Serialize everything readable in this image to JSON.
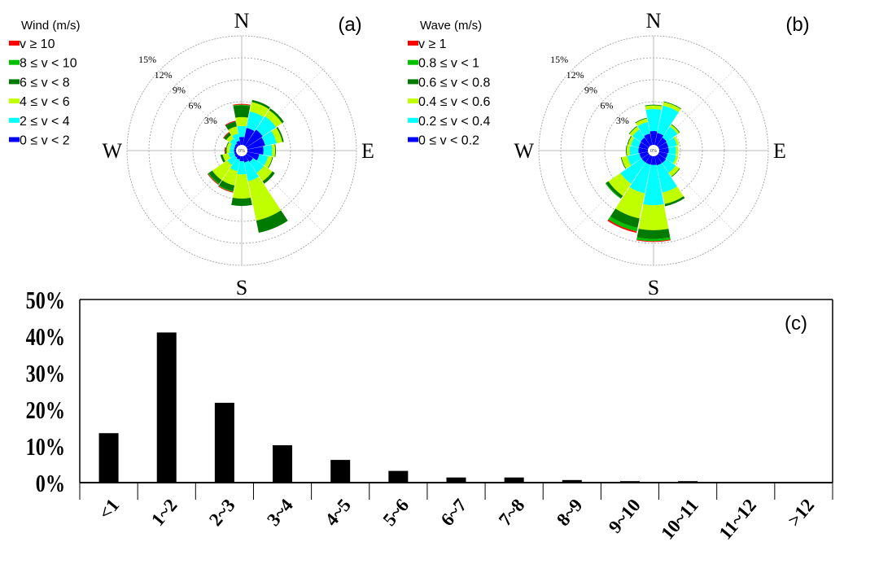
{
  "chart_data": [
    {
      "type": "windrose",
      "panel_label": "(a)",
      "legend_title": "Wind (m/s)",
      "legend_placement": "top-left",
      "bins": [
        "v ≥ 10",
        "8 ≤ v < 10",
        "6 ≤ v < 8",
        "4 ≤ v < 6",
        "2 ≤ v < 4",
        "0 ≤ v < 2"
      ],
      "bin_colors": [
        "#ff0000",
        "#00c000",
        "#007a00",
        "#c0ff00",
        "#00ffff",
        "#0000ff"
      ],
      "compass": {
        "n": "N",
        "e": "E",
        "s": "S",
        "w": "W"
      },
      "ring_labels": [
        "3%",
        "6%",
        "9%",
        "12%",
        "15%"
      ],
      "rings": [
        3,
        6,
        9,
        12,
        15
      ],
      "center_label": "0%",
      "directions": [
        "N",
        "NNE",
        "NE",
        "ENE",
        "E",
        "ESE",
        "SE",
        "SSE",
        "S",
        "SSW",
        "SW",
        "WSW",
        "W",
        "WNW",
        "NW",
        "NNW"
      ],
      "stack_order_inner_to_outer": [
        "0 ≤ v < 2",
        "2 ≤ v < 4",
        "4 ≤ v < 6",
        "6 ≤ v < 8",
        "8 ≤ v < 10",
        "v ≥ 10"
      ],
      "values_percent": [
        [
          1.2,
          1.5,
          1.2,
          1.6,
          0.1,
          0.1
        ],
        [
          2.5,
          2.3,
          1.3,
          0.3,
          0,
          0
        ],
        [
          2.8,
          2.2,
          1.0,
          0.3,
          0,
          0
        ],
        [
          2.6,
          1.6,
          0.8,
          0.2,
          0,
          0
        ],
        [
          2.3,
          1.2,
          0.4,
          0.1,
          0,
          0
        ],
        [
          1.8,
          1.2,
          0.6,
          0.1,
          0,
          0
        ],
        [
          1.2,
          1.8,
          1.4,
          0.4,
          0,
          0
        ],
        [
          1.0,
          2.6,
          5.5,
          1.7,
          0,
          0
        ],
        [
          0.8,
          1.8,
          3.3,
          1.0,
          0,
          0
        ],
        [
          0.6,
          1.6,
          2.0,
          0.8,
          0.1,
          0.1
        ],
        [
          0.5,
          1.2,
          2.5,
          0.6,
          0.1,
          0.1
        ],
        [
          0.4,
          0.8,
          0.8,
          0.3,
          0,
          0
        ],
        [
          0.4,
          0.6,
          0.4,
          0.2,
          0,
          0.1
        ],
        [
          0.4,
          0.6,
          0.4,
          0.1,
          0,
          0
        ],
        [
          0.5,
          0.8,
          0.6,
          0.4,
          0,
          0.1
        ],
        [
          0.7,
          1.0,
          1.0,
          0.7,
          0,
          0.1
        ]
      ]
    },
    {
      "type": "windrose",
      "panel_label": "(b)",
      "legend_title": "Wave (m/s)",
      "legend_placement": "top-left",
      "bins": [
        "v ≥ 1",
        "0.8 ≤ v < 1",
        "0.6 ≤ v < 0.8",
        "0.4 ≤ v < 0.6",
        "0.2 ≤ v < 0.4",
        "0 ≤ v < 0.2"
      ],
      "bin_colors": [
        "#ff0000",
        "#00c000",
        "#007a00",
        "#c0ff00",
        "#00ffff",
        "#0000ff"
      ],
      "compass": {
        "n": "N",
        "e": "E",
        "s": "S",
        "w": "W"
      },
      "ring_labels": [
        "3%",
        "6%",
        "9%",
        "12%",
        "15%"
      ],
      "rings": [
        3,
        6,
        9,
        12,
        15
      ],
      "center_label": "0%",
      "directions": [
        "N",
        "NNE",
        "NE",
        "ENE",
        "E",
        "ESE",
        "SE",
        "SSE",
        "S",
        "SSW",
        "SW",
        "WSW",
        "W",
        "WNW",
        "NW",
        "NNW"
      ],
      "stack_order_inner_to_outer": [
        "0 ≤ v < 0.2",
        "0.2 ≤ v < 0.4",
        "0.4 ≤ v < 0.6",
        "0.6 ≤ v < 0.8",
        "0.8 ≤ v < 1",
        "v ≥ 1"
      ],
      "values_percent": [
        [
          2.0,
          3.0,
          0.5,
          0.1,
          0,
          0
        ],
        [
          1.8,
          3.8,
          0.5,
          0.1,
          0,
          0
        ],
        [
          1.5,
          1.8,
          0.3,
          0.1,
          0,
          0
        ],
        [
          1.4,
          1.2,
          0.3,
          0,
          0,
          0
        ],
        [
          1.4,
          1.0,
          0.3,
          0,
          0,
          0
        ],
        [
          1.3,
          1.2,
          0.3,
          0,
          0,
          0
        ],
        [
          1.4,
          1.6,
          0.6,
          0.1,
          0,
          0
        ],
        [
          1.4,
          3.8,
          1.6,
          0.3,
          0,
          0
        ],
        [
          1.3,
          5.5,
          3.4,
          1.2,
          0.3,
          0.1
        ],
        [
          1.3,
          4.0,
          3.5,
          1.3,
          0.5,
          0.2
        ],
        [
          1.3,
          3.5,
          2.0,
          0.4,
          0.1,
          0
        ],
        [
          1.3,
          1.7,
          0.8,
          0.1,
          0,
          0
        ],
        [
          1.4,
          1.2,
          0.4,
          0.1,
          0,
          0
        ],
        [
          1.4,
          1.1,
          0.4,
          0.1,
          0,
          0
        ],
        [
          1.5,
          1.3,
          0.5,
          0.1,
          0,
          0
        ],
        [
          1.7,
          1.6,
          0.5,
          0.1,
          0,
          0
        ]
      ]
    },
    {
      "type": "bar",
      "panel_label": "(c)",
      "title": "",
      "xlabel": "",
      "ylabel": "",
      "ylim": [
        0,
        50
      ],
      "yticks": [
        "0%",
        "10%",
        "20%",
        "30%",
        "40%",
        "50%"
      ],
      "ytick_values": [
        0,
        10,
        20,
        30,
        40,
        50
      ],
      "categories": [
        "<1",
        "1~2",
        "2~3",
        "3~4",
        "4~5",
        "5~6",
        "6~7",
        "7~8",
        "8~9",
        "9~10",
        "10~11",
        "11~12",
        ">12"
      ],
      "values": [
        13.5,
        41.0,
        21.8,
        10.2,
        6.2,
        3.2,
        1.4,
        1.4,
        0.7,
        0.4,
        0.4,
        0.2,
        0.2
      ],
      "bar_color": "#000000",
      "grid": false
    }
  ]
}
